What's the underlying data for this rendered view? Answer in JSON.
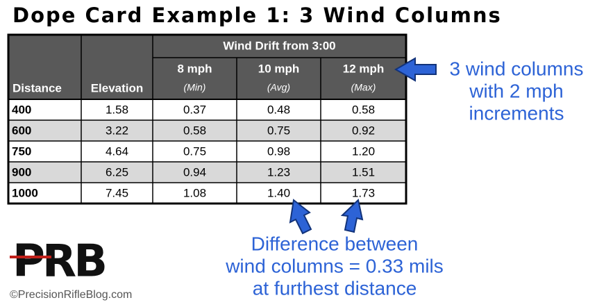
{
  "title": "Dope Card Example 1: 3 Wind Columns",
  "table": {
    "group_header": "Wind Drift from 3:00",
    "columns": [
      {
        "label": "Distance"
      },
      {
        "label": "Elevation"
      },
      {
        "label": "8 mph",
        "sub": "(Min)"
      },
      {
        "label": "10 mph",
        "sub": "(Avg)"
      },
      {
        "label": "12 mph",
        "sub": "(Max)"
      }
    ],
    "rows": [
      [
        "400",
        "1.58",
        "0.37",
        "0.48",
        "0.58"
      ],
      [
        "600",
        "3.22",
        "0.58",
        "0.75",
        "0.92"
      ],
      [
        "750",
        "4.64",
        "0.75",
        "0.98",
        "1.20"
      ],
      [
        "900",
        "6.25",
        "0.94",
        "1.23",
        "1.51"
      ],
      [
        "1000",
        "7.45",
        "1.08",
        "1.40",
        "1.73"
      ]
    ]
  },
  "annotations": {
    "wind_columns": [
      "3 wind columns",
      "with 2 mph",
      "increments"
    ],
    "difference": [
      "Difference between",
      "wind columns = 0.33 mils",
      "at furthest distance"
    ]
  },
  "logo": "PRB",
  "copyright": "©PrecisionRifleBlog.com"
}
